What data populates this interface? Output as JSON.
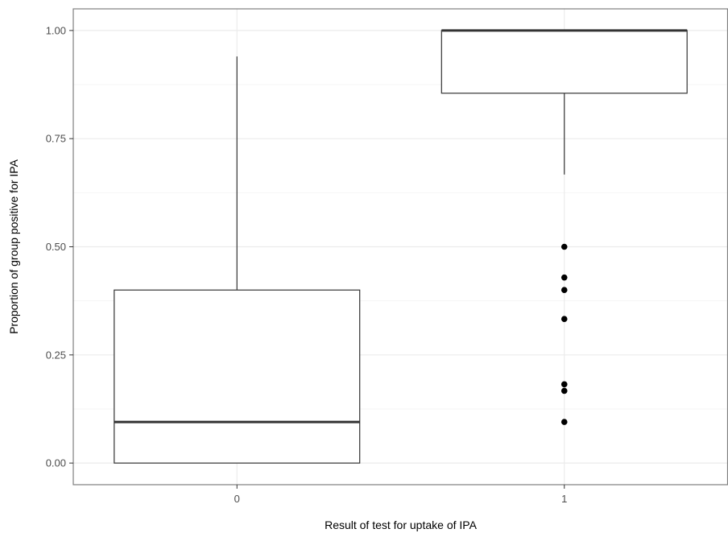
{
  "chart_data": {
    "type": "boxplot",
    "title": "",
    "xlabel": "Result of test for uptake of IPA",
    "ylabel": "Proportion of group positive for IPA",
    "categories": [
      "0",
      "1"
    ],
    "ylim": [
      -0.05,
      1.05
    ],
    "yticks": [
      0.0,
      0.25,
      0.5,
      0.75,
      1.0
    ],
    "ytick_labels": [
      "0.00",
      "0.25",
      "0.50",
      "0.75",
      "1.00"
    ],
    "grid": true,
    "boxes": [
      {
        "category": "0",
        "whisker_low": 0.0,
        "q1": 0.0,
        "median": 0.095,
        "q3": 0.4,
        "whisker_high": 0.94,
        "outliers": []
      },
      {
        "category": "1",
        "whisker_low": 0.667,
        "q1": 0.855,
        "median": 1.0,
        "q3": 1.0,
        "whisker_high": 1.0,
        "outliers": [
          0.5,
          0.429,
          0.4,
          0.333,
          0.182,
          0.167,
          0.095
        ]
      }
    ],
    "colors": {
      "box_line": "#333333",
      "box_fill": "#ffffff",
      "grid_major": "#ebebeb",
      "grid_minor": "#f5f5f5",
      "panel_border": "#7f7f7f",
      "outlier": "#000000"
    }
  }
}
